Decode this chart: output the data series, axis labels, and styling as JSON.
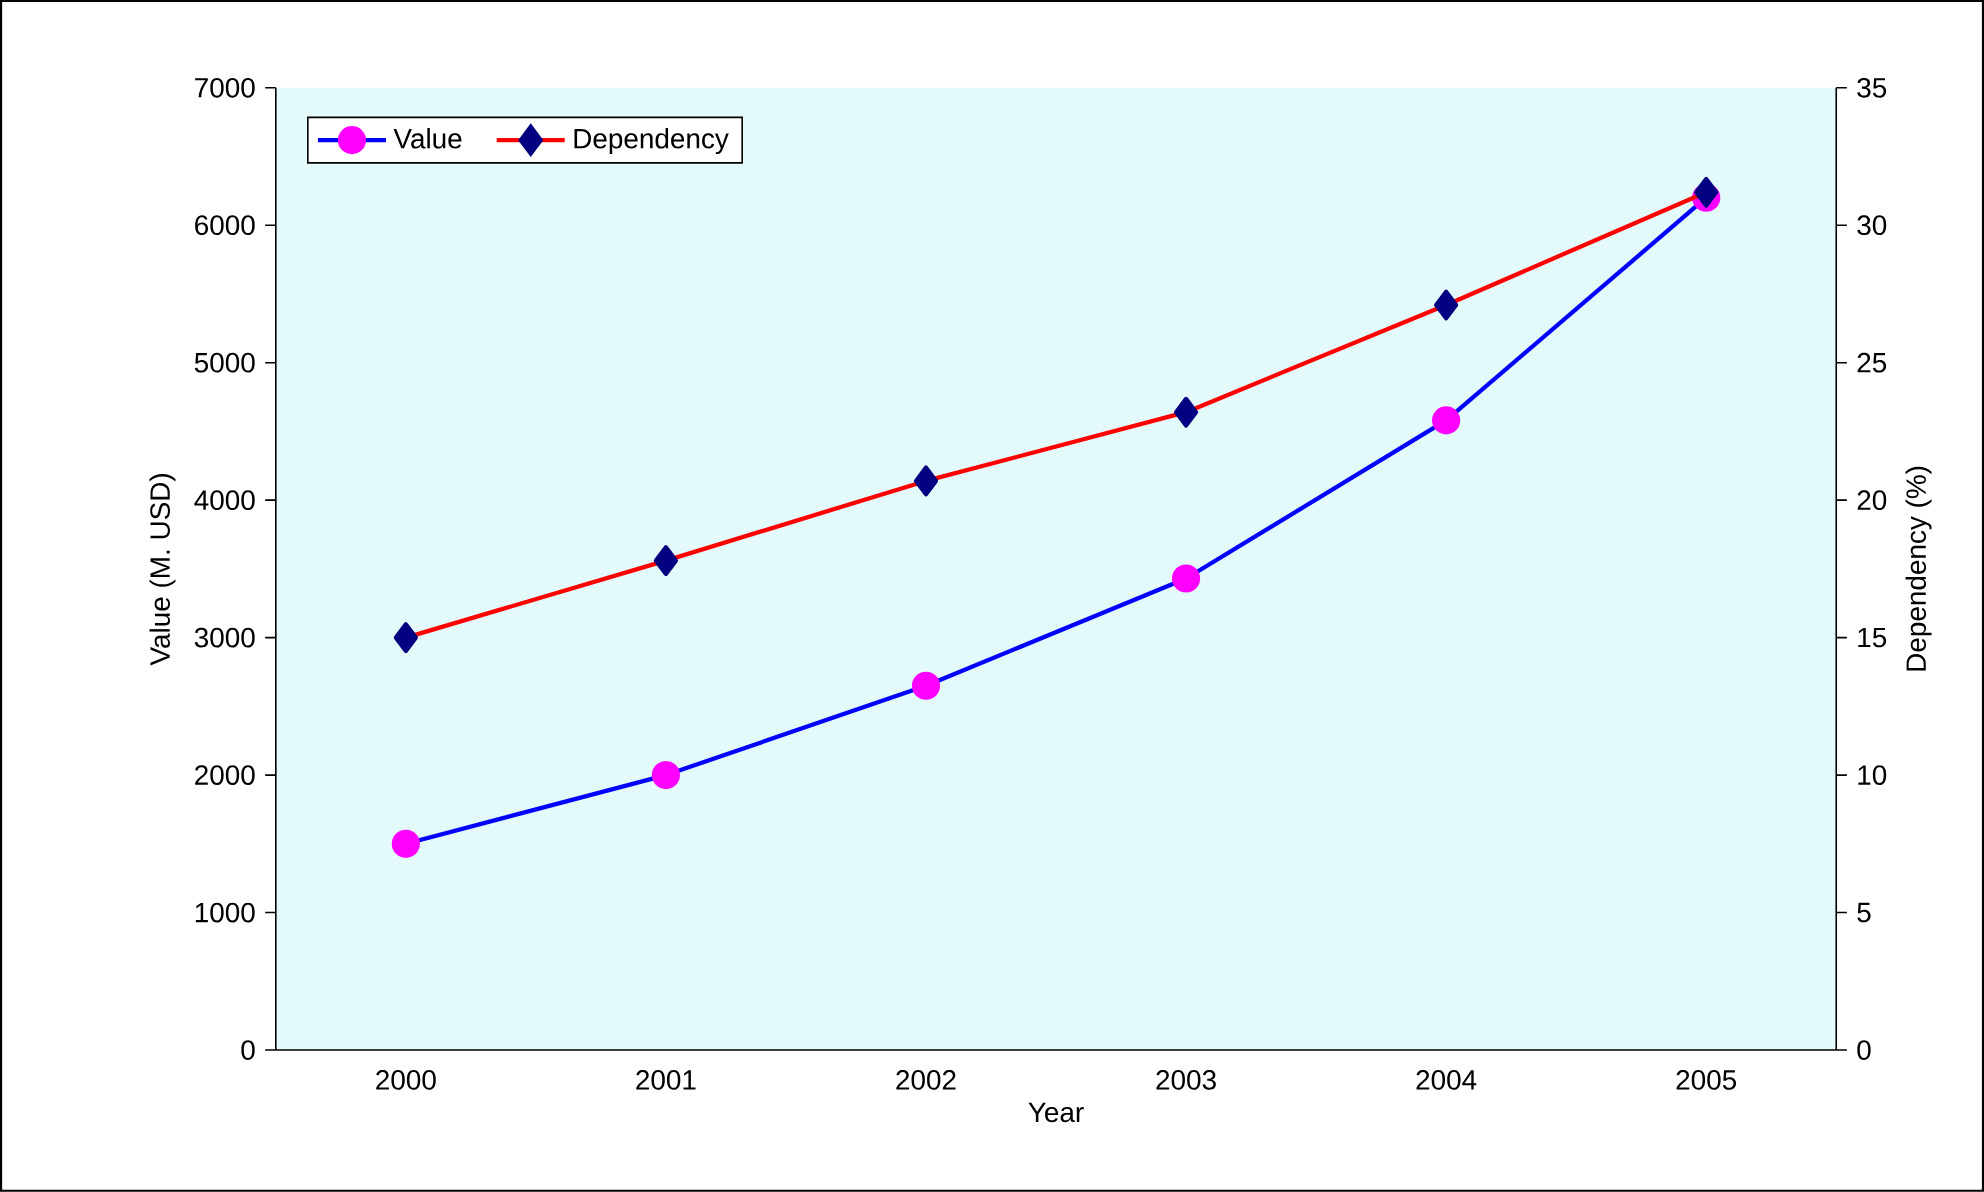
{
  "chart_data": {
    "type": "line",
    "xlabel": "Year",
    "ylabel": "Value (M. USD)",
    "y2label": "Dependency (%)",
    "categories": [
      "2000",
      "2001",
      "2002",
      "2003",
      "2004",
      "2005"
    ],
    "series": [
      {
        "name": "Value",
        "color": "#0000ff",
        "colors": [
          "#ff00ff",
          "#ff00ff",
          "#ff00ff",
          "#ff00ff",
          "#ff00ff",
          "#ff00ff"
        ],
        "marker": "circle",
        "values": [
          1500,
          2000,
          2650,
          3430,
          4580,
          6200
        ]
      },
      {
        "name": "Dependency",
        "color": "#ff0000",
        "colors": [
          "#000080",
          "#000080",
          "#000080",
          "#000080",
          "#000080",
          "#000080"
        ],
        "marker": "diamond",
        "axis": "y2",
        "values": [
          15,
          17.8,
          20.7,
          23.2,
          27.1,
          31.2
        ]
      }
    ],
    "ylim": [
      0,
      7000
    ],
    "yticks": [
      0,
      1000,
      2000,
      3000,
      4000,
      5000,
      6000,
      7000
    ],
    "y2lim": [
      0,
      35
    ],
    "y2ticks": [
      0,
      5,
      10,
      15,
      20,
      25,
      30,
      35
    ],
    "legend": "top left",
    "grid": false
  }
}
